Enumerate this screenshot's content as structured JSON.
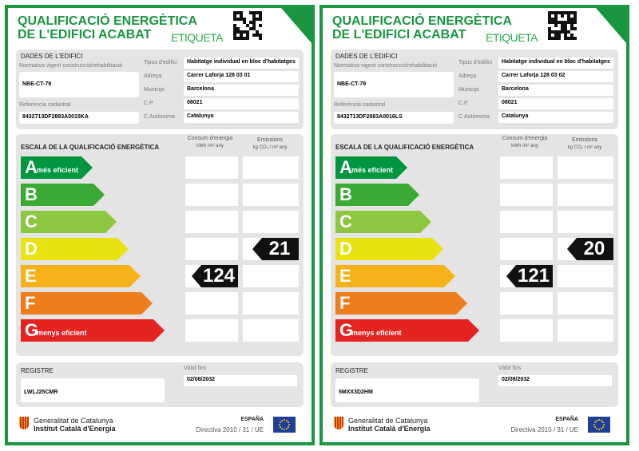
{
  "labels": [
    {
      "title_line1": "QUALIFICACIÓ ENERGÈTICA",
      "title_line2": "DE L'EDIFICI ACABAT",
      "tag": "ETIQUETA",
      "building": {
        "section": "DADES DE L'EDIFICI",
        "norm_label": "Normativa vigent construcció/rehabilitació",
        "norm": "NBE-CT-79",
        "cadastre_label": "Referència cadastral",
        "cadastre": "8432713DF2883A0015KA",
        "fields": [
          {
            "label": "Tipus d'edifici",
            "value": "Habitatge individual en bloc d'habitatges"
          },
          {
            "label": "Adreça",
            "value": "Carrer Laforja 128 03 01"
          },
          {
            "label": "Municipi",
            "value": "Barcelona"
          },
          {
            "label": "C.P.",
            "value": "08021"
          },
          {
            "label": "C.Autònoma",
            "value": "Catalunya"
          }
        ]
      },
      "scale": {
        "title": "ESCALA DE LA QUALIFICACIÓ ENERGÈTICA",
        "consumption_header": "Consum d'energia",
        "consumption_unit": "kWh /m² any",
        "emissions_header": "Emissions",
        "emissions_unit": "kg CO₂ / m² any",
        "classes": [
          {
            "letter": "A",
            "text": "més eficient",
            "color": "#009640"
          },
          {
            "letter": "B",
            "color": "#3aaa35"
          },
          {
            "letter": "C",
            "color": "#8dc63f"
          },
          {
            "letter": "D",
            "color": "#e8e30f"
          },
          {
            "letter": "E",
            "color": "#f7b219"
          },
          {
            "letter": "F",
            "color": "#ee7d1b"
          },
          {
            "letter": "G",
            "text": "menys eficient",
            "color": "#e52321"
          }
        ],
        "consumption": {
          "class": "E",
          "value": "124"
        },
        "emissions": {
          "class": "D",
          "value": "21"
        }
      },
      "registry": {
        "label": "REGISTRE",
        "code": "LWLJ25CMR",
        "valid_label": "Vàlid fins",
        "valid": "02/08/2032"
      },
      "footer": {
        "org1": "Generalitat de Catalunya",
        "org2": "Institut Català d'Energia",
        "country": "ESPAÑA",
        "directive": "Directiva 2010 / 31 / UE"
      }
    },
    {
      "title_line1": "QUALIFICACIÓ ENERGÈTICA",
      "title_line2": "DE L'EDIFICI ACABAT",
      "tag": "ETIQUETA",
      "building": {
        "section": "DADES DE L'EDIFICI",
        "norm_label": "Normativa vigent construcció/rehabilitació",
        "norm": "NBE-CT-79",
        "cadastre_label": "Referència cadastral",
        "cadastre": "8432713DF2883A0016LS",
        "fields": [
          {
            "label": "Tipus d'edifici",
            "value": "Habitatge individual en bloc d'habitatges"
          },
          {
            "label": "Adreça",
            "value": "Carrer Laforja 128 03 02"
          },
          {
            "label": "Municipi",
            "value": "Barcelona"
          },
          {
            "label": "C.P.",
            "value": "08021"
          },
          {
            "label": "C.Autònoma",
            "value": "Catalunya"
          }
        ]
      },
      "scale": {
        "title": "ESCALA DE LA QUALIFICACIÓ ENERGÈTICA",
        "consumption_header": "Consum d'energia",
        "consumption_unit": "kWh /m² any",
        "emissions_header": "Emissions",
        "emissions_unit": "kg CO₂ / m² any",
        "classes": [
          {
            "letter": "A",
            "text": "més eficient",
            "color": "#009640"
          },
          {
            "letter": "B",
            "color": "#3aaa35"
          },
          {
            "letter": "C",
            "color": "#8dc63f"
          },
          {
            "letter": "D",
            "color": "#e8e30f"
          },
          {
            "letter": "E",
            "color": "#f7b219"
          },
          {
            "letter": "F",
            "color": "#ee7d1b"
          },
          {
            "letter": "G",
            "text": "menys eficient",
            "color": "#e52321"
          }
        ],
        "consumption": {
          "class": "E",
          "value": "121"
        },
        "emissions": {
          "class": "D",
          "value": "20"
        }
      },
      "registry": {
        "label": "REGISTRE",
        "code": "5MXX3D2HM",
        "valid_label": "Vàlid fins",
        "valid": "02/08/2032"
      },
      "footer": {
        "org1": "Generalitat de Catalunya",
        "org2": "Institut Català d'Energia",
        "country": "ESPAÑA",
        "directive": "Directiva 2010 / 31 / UE"
      }
    }
  ]
}
